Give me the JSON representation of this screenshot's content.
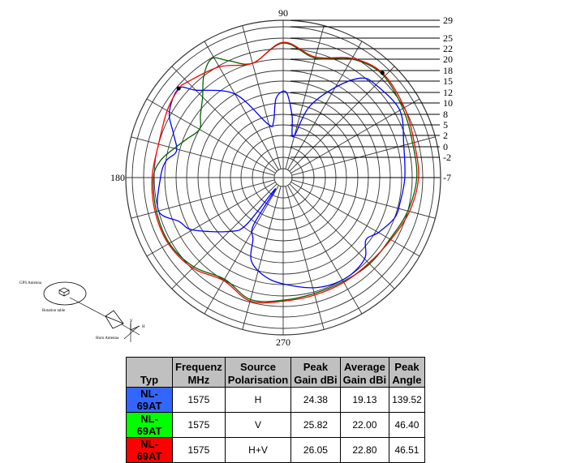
{
  "chart_data": {
    "type": "polar-line",
    "angle_labels": {
      "a90": "90",
      "a180": "180",
      "a270": "270"
    },
    "angle_unit": "degrees",
    "radial_unit": "dBi",
    "radial_ticks": [
      -7,
      -2,
      0,
      2,
      5,
      8,
      10,
      12,
      15,
      18,
      20,
      22,
      25,
      29
    ],
    "radial_tick_labels": [
      "-7",
      "-2",
      "0",
      "2",
      "5",
      "8",
      "10",
      "12",
      "15",
      "18",
      "20",
      "22",
      "25",
      "29"
    ],
    "radial_range": [
      -7,
      29
    ],
    "grid": true,
    "series": [
      {
        "color": "#0000ff",
        "points": [
          [
            0,
            20.6
          ],
          [
            15,
            21.2
          ],
          [
            30,
            23.6
          ],
          [
            45,
            22.6
          ],
          [
            52,
            21.5
          ],
          [
            60,
            17.2
          ],
          [
            70,
            10
          ],
          [
            76,
            2
          ],
          [
            82,
            8
          ],
          [
            88,
            12.1
          ],
          [
            95,
            11
          ],
          [
            100,
            6
          ],
          [
            106,
            5.9
          ],
          [
            120,
            15
          ],
          [
            135,
            21
          ],
          [
            139.52,
            24.38
          ],
          [
            150,
            22.7
          ],
          [
            158,
            20
          ],
          [
            166,
            18.5
          ],
          [
            172,
            20
          ],
          [
            180,
            20.8
          ],
          [
            195,
            22
          ],
          [
            203,
            19
          ],
          [
            210,
            17.3
          ],
          [
            225,
            10.3
          ],
          [
            232,
            7
          ],
          [
            235,
            -5
          ],
          [
            238,
            6
          ],
          [
            244,
            9
          ],
          [
            249,
            13
          ],
          [
            259,
            16
          ],
          [
            270,
            17.8
          ],
          [
            287,
            19.4
          ],
          [
            302,
            20
          ],
          [
            315,
            19.4
          ],
          [
            323,
            17
          ],
          [
            330,
            18.5
          ],
          [
            340,
            20
          ],
          [
            348,
            20.2
          ]
        ]
      },
      {
        "color": "#006400",
        "points": [
          [
            0,
            23.3
          ],
          [
            15,
            23.4
          ],
          [
            30,
            24.6
          ],
          [
            46.4,
            25.82
          ],
          [
            60,
            24.3
          ],
          [
            75,
            21
          ],
          [
            90,
            23.6
          ],
          [
            105,
            20
          ],
          [
            115,
            22
          ],
          [
            121,
            24.8
          ],
          [
            128,
            22
          ],
          [
            135,
            19.2
          ],
          [
            143,
            17
          ],
          [
            150,
            15
          ],
          [
            158,
            17
          ],
          [
            165,
            19
          ],
          [
            172,
            21
          ],
          [
            180,
            22.2
          ],
          [
            195,
            22.6
          ],
          [
            210,
            22.7
          ],
          [
            225,
            21.5
          ],
          [
            240,
            19.8
          ],
          [
            255,
            21.5
          ],
          [
            270,
            20.8
          ],
          [
            285,
            20.3
          ],
          [
            300,
            20.3
          ],
          [
            315,
            20.7
          ],
          [
            330,
            20.9
          ],
          [
            345,
            22
          ]
        ]
      },
      {
        "color": "#ff0000",
        "points": [
          [
            0,
            23.8
          ],
          [
            15,
            23.9
          ],
          [
            30,
            25.1
          ],
          [
            46.51,
            26.05
          ],
          [
            60,
            24.5
          ],
          [
            75,
            21.2
          ],
          [
            90,
            23.8
          ],
          [
            105,
            20
          ],
          [
            120,
            21.8
          ],
          [
            135,
            23.8
          ],
          [
            139.5,
            24.3
          ],
          [
            150,
            23.4
          ],
          [
            165,
            22
          ],
          [
            180,
            22.6
          ],
          [
            195,
            23
          ],
          [
            210,
            23
          ],
          [
            225,
            21.8
          ],
          [
            240,
            20.1
          ],
          [
            255,
            21.8
          ],
          [
            270,
            21
          ],
          [
            285,
            20.6
          ],
          [
            300,
            20.5
          ],
          [
            315,
            20.5
          ],
          [
            330,
            21.1
          ],
          [
            345,
            22.5
          ]
        ]
      }
    ],
    "peak_markers": [
      [
        46.51,
        26.05
      ],
      [
        139.52,
        24.38
      ]
    ]
  },
  "diagram": {
    "gps": "GPS Antenna",
    "table": "Rotation table",
    "horn": "Horn Antenna",
    "v": "V",
    "h": "H"
  },
  "table": {
    "headers": [
      "Typ",
      "Frequenz MHz",
      "Source Polarisation",
      "Peak Gain dBi",
      "Average Gain dBi",
      "Peak Angle"
    ],
    "header_lines": [
      [
        "Typ"
      ],
      [
        "Frequenz",
        "MHz"
      ],
      [
        "Source",
        "Polarisation"
      ],
      [
        "Peak",
        "Gain dBi"
      ],
      [
        "Average",
        "Gain dBi"
      ],
      [
        "Peak",
        "Angle"
      ]
    ],
    "rows": [
      {
        "color": "#3366ff",
        "cells": [
          "NL-69AT",
          "1575",
          "H",
          "24.38",
          "19.13",
          "139.52"
        ]
      },
      {
        "color": "#00ff00",
        "cells": [
          "NL-69AT",
          "1575",
          "V",
          "25.82",
          "22.00",
          "46.40"
        ]
      },
      {
        "color": "#ff0000",
        "cells": [
          "NL-69AT",
          "1575",
          "H+V",
          "26.05",
          "22.80",
          "46.51"
        ]
      }
    ]
  }
}
